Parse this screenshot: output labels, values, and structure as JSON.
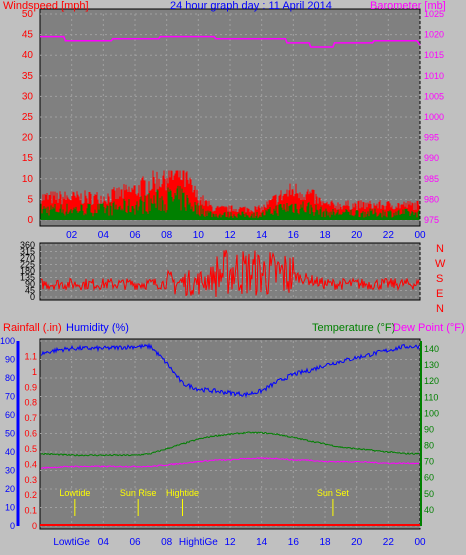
{
  "header": {
    "left_label": "Windspeed [mph]",
    "title": "24 hour graph day : 11 April 2014",
    "right_label": "Barometer [mb]"
  },
  "middle_panel": {
    "compass_labels": [
      "N",
      "W",
      "S",
      "E",
      "N"
    ]
  },
  "bottom_header": {
    "rainfall_label": "Rainfall (.in)",
    "humidity_label": "Humidity (%)",
    "temperature_label": "Temperature (°F)",
    "dewpoint_label": "Dew Point (°F)"
  },
  "annotations": [
    {
      "label": "Lowtide",
      "hour": 2.2
    },
    {
      "label": "Sun Rise",
      "hour": 6.2
    },
    {
      "label": "Hightide",
      "hour": 9.0
    },
    {
      "label": "Sun Set",
      "hour": 18.5
    }
  ],
  "bottom_x_special_labels": {
    "lowtide": "LowtiGe",
    "hightide": "HightiGe"
  },
  "colors": {
    "background": "#c0c0c0",
    "wind": "#008000",
    "gust": "#ff0000",
    "barometer": "#ff00ff",
    "humidity": "#0000ff",
    "temperature": "#008000",
    "dewpoint": "#ff00ff",
    "rainfall": "#ff0000",
    "annotation": "#ffff00"
  },
  "chart_data": [
    {
      "type": "line",
      "title": "24 hour graph day : 11 April 2014",
      "xlabel": "",
      "x_ticks": [
        "02",
        "04",
        "06",
        "08",
        "10",
        "12",
        "14",
        "16",
        "18",
        "20",
        "22",
        "00"
      ],
      "xlim_hours": [
        0,
        24
      ],
      "ylabel_left": "Windspeed [mph]",
      "ylim_left": [
        0,
        50
      ],
      "y_ticks_left": [
        0,
        5,
        10,
        15,
        20,
        25,
        30,
        35,
        40,
        45,
        50
      ],
      "ylabel_right": "Barometer [mb]",
      "ylim_right": [
        975,
        1025
      ],
      "y_ticks_right": [
        975,
        980,
        985,
        990,
        995,
        1000,
        1005,
        1010,
        1015,
        1020,
        1025
      ],
      "series": [
        {
          "name": "Barometer [mb]",
          "axis": "right",
          "x": [
            0,
            1.5,
            1.6,
            3,
            4.5,
            4.6,
            7,
            7.5,
            7.6,
            10,
            11,
            11.1,
            15.5,
            15.6,
            17,
            17.1,
            18.5,
            18.6,
            21,
            21.1,
            23.8,
            24
          ],
          "values": [
            1019.5,
            1019.5,
            1018.5,
            1018.5,
            1018.5,
            1019,
            1019,
            1019,
            1019.5,
            1019.5,
            1019.5,
            1019,
            1019,
            1018,
            1018,
            1017,
            1017,
            1018,
            1018,
            1018.5,
            1018.5,
            1017.5
          ]
        },
        {
          "name": "Windspeed [mph]",
          "axis": "left",
          "hourly_avg_x": [
            0,
            2,
            4,
            6,
            7,
            8,
            9,
            10,
            11,
            12,
            14,
            15,
            16,
            17,
            18,
            20,
            22,
            24
          ],
          "hourly_avg": [
            3,
            3,
            3,
            4,
            5,
            6,
            6,
            3,
            1.5,
            1.5,
            1.5,
            3,
            4,
            3.5,
            2,
            2,
            2,
            2
          ],
          "peak_gust": 12
        }
      ]
    },
    {
      "type": "scatter",
      "title": "",
      "xlabel": "",
      "ylabel": "",
      "x_ticks": [
        "02",
        "04",
        "06",
        "08",
        "10",
        "12",
        "14",
        "16",
        "18",
        "20",
        "22",
        "00"
      ],
      "ylim": [
        0,
        360
      ],
      "y_ticks": [
        0,
        45,
        90,
        135,
        180,
        225,
        270,
        315,
        360
      ],
      "series": [
        {
          "name": "",
          "typical_x": [
            0,
            6,
            10,
            12,
            16,
            18,
            24
          ],
          "typical": [
            90,
            90,
            100,
            180,
            150,
            90,
            90
          ]
        }
      ]
    },
    {
      "type": "line",
      "title": "",
      "xlabel": "",
      "ylabel_left": "Humidity (%)",
      "ylim_left": [
        0,
        100
      ],
      "y_ticks_left": [
        0,
        10,
        20,
        30,
        40,
        50,
        60,
        70,
        80,
        90,
        100
      ],
      "ylabel_rain": "Rainfall (.in)",
      "ylim_rain": [
        0,
        1.2
      ],
      "y_ticks_rain": [
        0,
        0.1,
        0.2,
        0.3,
        0.4,
        0.5,
        0.6,
        0.7,
        0.8,
        0.9,
        1,
        1.1
      ],
      "ylabel_right": "Temperature (°F) / Dew Point (°F)",
      "ylim_right": [
        30,
        145
      ],
      "y_ticks_right": [
        40,
        50,
        60,
        70,
        80,
        90,
        100,
        110,
        120,
        130,
        140
      ],
      "x_ticks": [
        "02",
        "04",
        "06",
        "08",
        "10",
        "12",
        "14",
        "16",
        "18",
        "20",
        "22",
        "00"
      ],
      "series": [
        {
          "name": "Humidity (%)",
          "axis": "left",
          "x": [
            0,
            1,
            2,
            4,
            6,
            7,
            8,
            9,
            10,
            11,
            12,
            13,
            14,
            15,
            16,
            17,
            18,
            19,
            20,
            21,
            22,
            23,
            24
          ],
          "values": [
            93,
            95,
            96,
            96,
            97,
            97,
            88,
            77,
            74,
            73,
            72,
            71,
            73,
            78,
            82,
            84,
            87,
            89,
            91,
            93,
            95,
            97,
            97
          ]
        },
        {
          "name": "Temperature (°F)",
          "axis": "right",
          "x": [
            0,
            2,
            4,
            6,
            7,
            8,
            9,
            10,
            11,
            12,
            13,
            14,
            15,
            16,
            17,
            18,
            19,
            20,
            21,
            22,
            23,
            24
          ],
          "values": [
            75,
            74,
            74,
            74,
            75,
            78,
            81,
            84,
            86,
            87,
            88,
            88,
            87,
            85,
            83,
            81,
            79,
            78,
            77,
            76,
            75,
            75
          ]
        },
        {
          "name": "Dew Point (°F)",
          "axis": "right",
          "x": [
            0,
            2,
            4,
            6,
            7,
            8,
            9,
            10,
            11,
            12,
            13,
            14,
            15,
            16,
            17,
            18,
            19,
            20,
            22,
            24
          ],
          "values": [
            66,
            67,
            67,
            67,
            67,
            68,
            69,
            70,
            71,
            71,
            72,
            72,
            72,
            71,
            71,
            70,
            70,
            70,
            69,
            69
          ]
        },
        {
          "name": "Rainfall (.in)",
          "axis": "rain",
          "x": [
            0,
            24
          ],
          "values": [
            0,
            0
          ]
        }
      ]
    }
  ]
}
